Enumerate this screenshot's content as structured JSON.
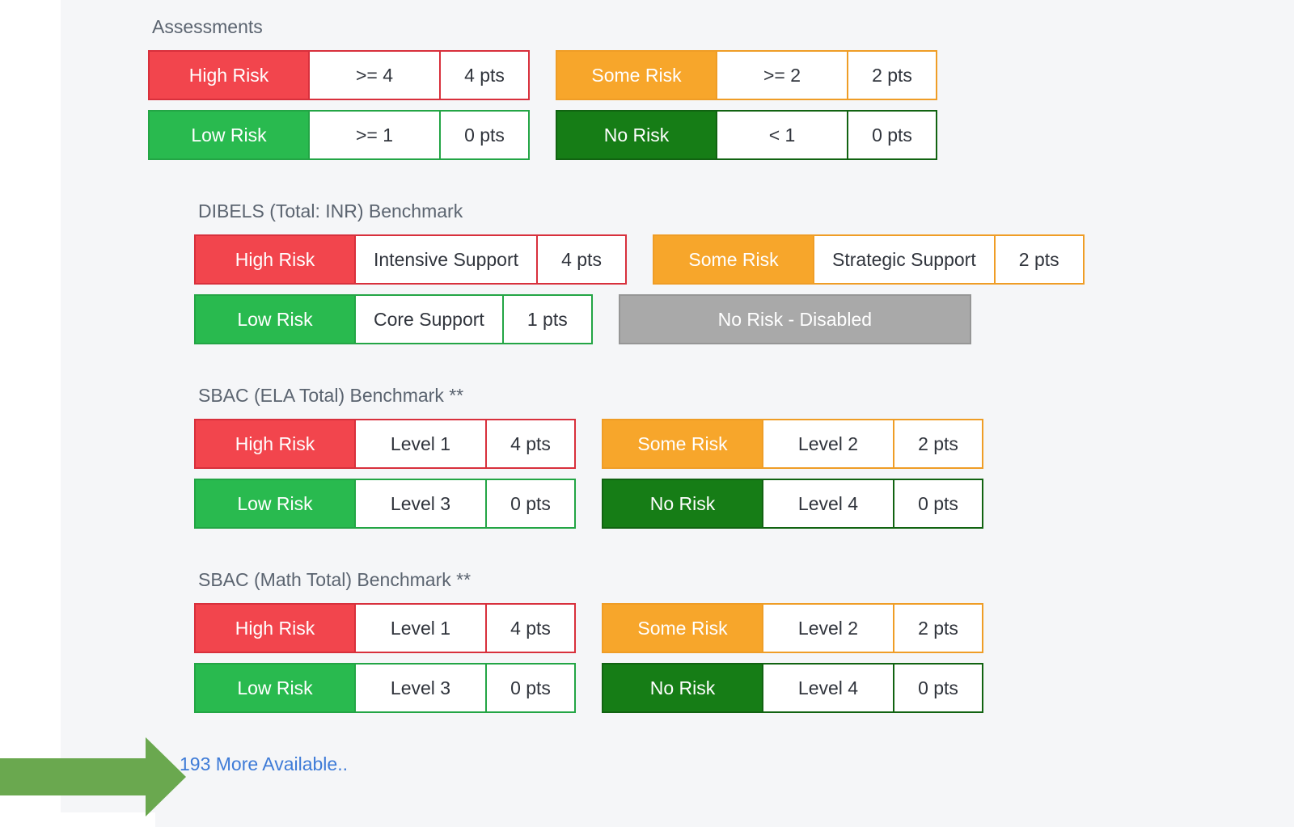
{
  "colors": {
    "background": "#f5f6f8",
    "left_strip": "#ffffff",
    "high_risk_fill": "#f2454d",
    "high_risk_border": "#d8303c",
    "some_risk_fill": "#f7a62b",
    "some_risk_border": "#ef9d26",
    "low_risk_fill": "#29ba4f",
    "low_risk_border": "#23a545",
    "no_risk_fill": "#167d16",
    "no_risk_border": "#116311",
    "disabled_fill": "#a9a9a9",
    "disabled_border": "#969696",
    "cell_text": "#30343c",
    "title_text": "#5b6470",
    "link_blue": "#3e7bd7",
    "arrow_green": "#6aa84f"
  },
  "sections": [
    {
      "title": "Assessments",
      "badges": [
        {
          "label": "High Risk",
          "variant": "high",
          "cells": [
            ">= 4",
            "4 pts"
          ]
        },
        {
          "label": "Some Risk",
          "variant": "some",
          "cells": [
            ">= 2",
            "2 pts"
          ]
        },
        {
          "label": "Low Risk",
          "variant": "low",
          "cells": [
            ">= 1",
            "0 pts"
          ]
        },
        {
          "label": "No Risk",
          "variant": "no",
          "cells": [
            "< 1",
            "0 pts"
          ]
        }
      ]
    },
    {
      "title": "DIBELS (Total: INR) Benchmark",
      "badges": [
        {
          "label": "High Risk",
          "variant": "high",
          "cells": [
            "Intensive Support",
            "4 pts"
          ]
        },
        {
          "label": "Some Risk",
          "variant": "some",
          "cells": [
            "Strategic Support",
            "2 pts"
          ]
        },
        {
          "label": "Low Risk",
          "variant": "low",
          "cells": [
            "Core Support",
            "1 pts"
          ]
        },
        {
          "label": "No Risk - Disabled",
          "variant": "disabled",
          "cells": []
        }
      ]
    },
    {
      "title": "SBAC (ELA Total) Benchmark **",
      "badges": [
        {
          "label": "High Risk",
          "variant": "high",
          "cells": [
            "Level 1",
            "4 pts"
          ]
        },
        {
          "label": "Some Risk",
          "variant": "some",
          "cells": [
            "Level 2",
            "2 pts"
          ]
        },
        {
          "label": "Low Risk",
          "variant": "low",
          "cells": [
            "Level 3",
            "0 pts"
          ]
        },
        {
          "label": "No Risk",
          "variant": "no",
          "cells": [
            "Level 4",
            "0 pts"
          ]
        }
      ]
    },
    {
      "title": "SBAC (Math Total) Benchmark **",
      "badges": [
        {
          "label": "High Risk",
          "variant": "high",
          "cells": [
            "Level 1",
            "4 pts"
          ]
        },
        {
          "label": "Some Risk",
          "variant": "some",
          "cells": [
            "Level 2",
            "2 pts"
          ]
        },
        {
          "label": "Low Risk",
          "variant": "low",
          "cells": [
            "Level 3",
            "0 pts"
          ]
        },
        {
          "label": "No Risk",
          "variant": "no",
          "cells": [
            "Level 4",
            "0 pts"
          ]
        }
      ]
    }
  ],
  "more_link": {
    "label": "193 More Available.."
  },
  "annotations": {
    "arrow_icon": "green-right-arrow"
  }
}
